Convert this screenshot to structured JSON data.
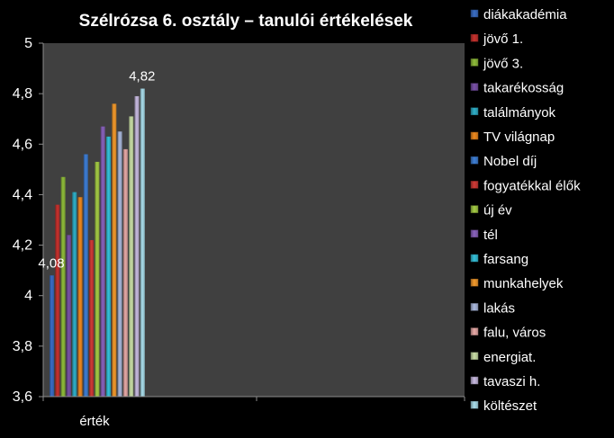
{
  "chart_data": {
    "type": "bar",
    "title": "Szélrózsa 6. osztály – tanulói értékelések",
    "categories": [
      "érték"
    ],
    "ylim": [
      3.6,
      5
    ],
    "yticks": [
      "3,6",
      "3,8",
      "4",
      "4,2",
      "4,4",
      "4,6",
      "4,8",
      "5"
    ],
    "grid": false,
    "legend_position": "right",
    "series": [
      {
        "name": "diákakadémia",
        "values": [
          4.08
        ],
        "color": "#3B6EC5"
      },
      {
        "name": "jövő 1.",
        "values": [
          4.36
        ],
        "color": "#C8322E"
      },
      {
        "name": "jövő 3.",
        "values": [
          4.47
        ],
        "color": "#8FBC3A"
      },
      {
        "name": "takarékosság",
        "values": [
          4.24
        ],
        "color": "#7A52A8"
      },
      {
        "name": "találmányok",
        "values": [
          4.41
        ],
        "color": "#2FAFC8"
      },
      {
        "name": "TV világnap",
        "values": [
          4.39
        ],
        "color": "#F08A1E"
      },
      {
        "name": "Nobel díj",
        "values": [
          4.56
        ],
        "color": "#3F7FD6"
      },
      {
        "name": "fogyatékkal élők",
        "values": [
          4.22
        ],
        "color": "#D03A36"
      },
      {
        "name": "új év",
        "values": [
          4.53
        ],
        "color": "#A5CC45"
      },
      {
        "name": "tél",
        "values": [
          4.67
        ],
        "color": "#8A63BD"
      },
      {
        "name": "farsang",
        "values": [
          4.63
        ],
        "color": "#35C2DA"
      },
      {
        "name": "munkahelyek",
        "values": [
          4.76
        ],
        "color": "#F39A2C"
      },
      {
        "name": "lakás",
        "values": [
          4.65
        ],
        "color": "#AAB9DD"
      },
      {
        "name": "falu, város",
        "values": [
          4.58
        ],
        "color": "#E7A9A6"
      },
      {
        "name": "energiat.",
        "values": [
          4.71
        ],
        "color": "#C9DEA6"
      },
      {
        "name": "tavaszi h.",
        "values": [
          4.79
        ],
        "color": "#C8BAE0"
      },
      {
        "name": "költészet",
        "values": [
          4.82
        ],
        "color": "#A9DDEB"
      }
    ],
    "data_labels": [
      {
        "series": "diákakadémia",
        "text": "4,08"
      },
      {
        "series": "költészet",
        "text": "4,82"
      }
    ]
  }
}
